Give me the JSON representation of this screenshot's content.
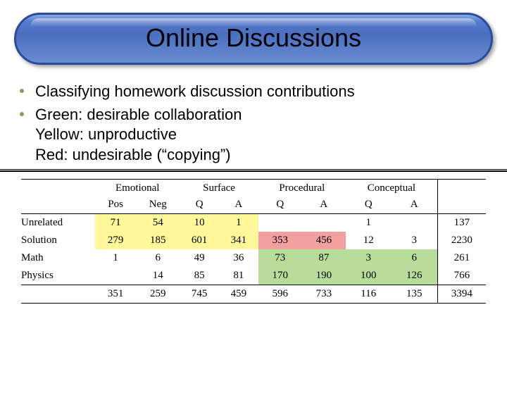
{
  "title": "Online Discussions",
  "bullets": {
    "b1": "Classifying homework discussion contributions",
    "b2_l1": "Green: desirable collaboration",
    "b2_l2": "Yellow: unproductive",
    "b2_l3": "Red: undesirable (“copying”)"
  },
  "table": {
    "group_headers": [
      "Emotional",
      "Surface",
      "Procedural",
      "Conceptual"
    ],
    "sub_headers": [
      "Pos",
      "Neg",
      "Q",
      "A",
      "Q",
      "A",
      "Q",
      "A"
    ],
    "row_labels": [
      "Unrelated",
      "Solution",
      "Math",
      "Physics"
    ],
    "rows": [
      [
        "71",
        "54",
        "10",
        "1",
        "",
        "",
        "1",
        "",
        "137"
      ],
      [
        "279",
        "185",
        "601",
        "341",
        "353",
        "456",
        "12",
        "3",
        "2230"
      ],
      [
        "1",
        "6",
        "49",
        "36",
        "73",
        "87",
        "3",
        "6",
        "261"
      ],
      [
        "",
        "14",
        "85",
        "81",
        "170",
        "190",
        "100",
        "126",
        "766"
      ]
    ],
    "totals": [
      "351",
      "259",
      "745",
      "459",
      "596",
      "733",
      "116",
      "135",
      "3394"
    ],
    "highlights": {
      "yellow_cells": [
        [
          0,
          0
        ],
        [
          0,
          1
        ],
        [
          0,
          2
        ],
        [
          0,
          3
        ],
        [
          1,
          0
        ],
        [
          1,
          1
        ],
        [
          1,
          2
        ],
        [
          1,
          3
        ]
      ],
      "red_cells": [
        [
          1,
          4
        ],
        [
          1,
          5
        ]
      ],
      "green_cells": [
        [
          2,
          4
        ],
        [
          2,
          5
        ],
        [
          2,
          6
        ],
        [
          2,
          7
        ],
        [
          3,
          4
        ],
        [
          3,
          5
        ],
        [
          3,
          6
        ],
        [
          3,
          7
        ]
      ]
    },
    "colors": {
      "yellow": "#fff89a",
      "red": "#f2a0a0",
      "green": "#b8dd9a",
      "banner_border": "#2a4a9a",
      "bullet_dot": "#8a9a55"
    },
    "fontsize_body": 15,
    "fontsize_title": 36,
    "fontsize_bullet": 22
  }
}
